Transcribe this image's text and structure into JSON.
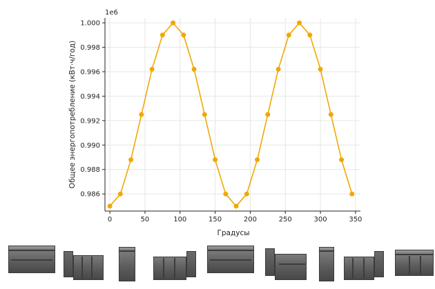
{
  "chart_data": {
    "type": "line",
    "title": "",
    "xlabel": "Градусы",
    "ylabel": "Общее энергопотребление (кВт·ч/год)",
    "y_offset_label": "1e6",
    "xlim": [
      -7,
      357
    ],
    "ylim": [
      0.9846,
      1.0004
    ],
    "x_ticks": [
      0,
      50,
      100,
      150,
      200,
      250,
      300,
      350
    ],
    "y_ticks": [
      0.986,
      0.988,
      0.99,
      0.992,
      0.994,
      0.996,
      0.998,
      1.0
    ],
    "y_tick_labels": [
      "0.986",
      "0.988",
      "0.990",
      "0.992",
      "0.994",
      "0.996",
      "0.998",
      "1.000"
    ],
    "grid": true,
    "series": [
      {
        "color": "#f0a800",
        "x": [
          0,
          15,
          30,
          45,
          60,
          75,
          90,
          105,
          120,
          135,
          150,
          165,
          180,
          195,
          210,
          225,
          240,
          255,
          270,
          285,
          300,
          315,
          330,
          345
        ],
        "y": [
          0.985,
          0.986,
          0.9888,
          0.9925,
          0.9962,
          0.999,
          1.0,
          0.999,
          0.9962,
          0.9925,
          0.9888,
          0.986,
          0.985,
          0.986,
          0.9888,
          0.9925,
          0.9962,
          0.999,
          1.0,
          0.999,
          0.9962,
          0.9925,
          0.9888,
          0.986
        ]
      }
    ]
  },
  "thumbnails": {
    "color": "#5e5e5e",
    "count": 9
  }
}
